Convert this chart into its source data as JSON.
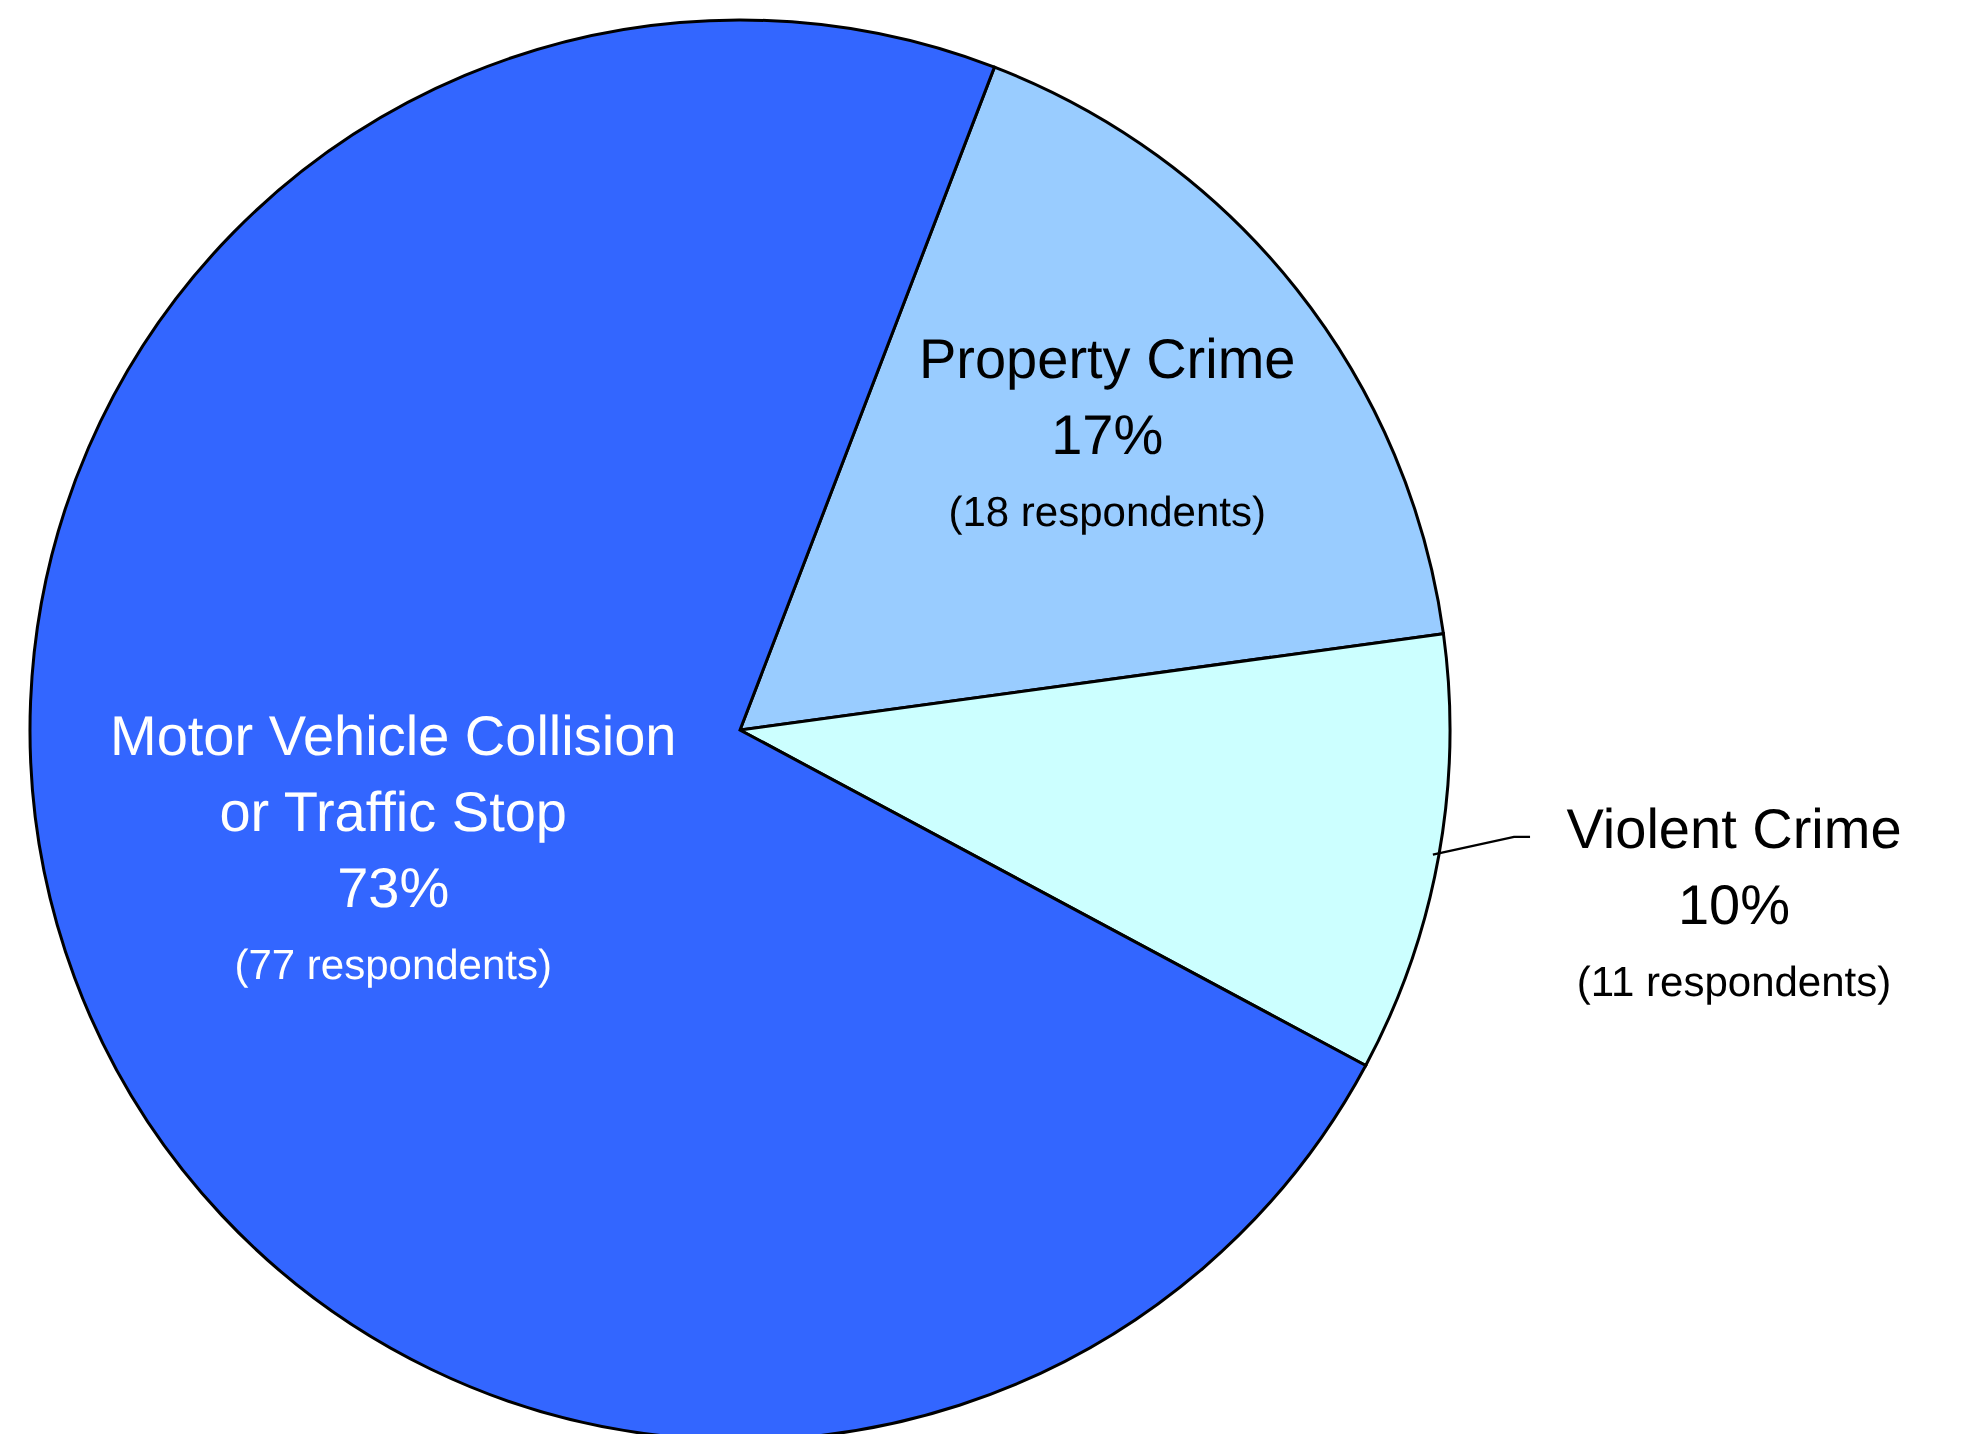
{
  "chart_data": {
    "type": "pie",
    "categories": [
      "Property Crime",
      "Violent Crime",
      "Motor Vehicle Collision\nor Traffic Stop"
    ],
    "values": [
      17,
      10,
      73
    ],
    "colors": [
      "#99ccff",
      "#ccffff",
      "#3366ff"
    ],
    "value_labels": [
      "17%\n(18 respondents)",
      "10%\n(11 respondents)",
      "73%\n(77 respondents)"
    ]
  }
}
